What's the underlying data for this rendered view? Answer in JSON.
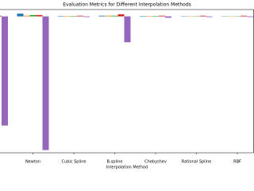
{
  "chart_data": {
    "type": "bar",
    "title": "Evaluation Metrics for Different Interpolation Methods",
    "x_label": "Interpolation Method",
    "categories": [
      null,
      "Newton",
      "Cubic Spline",
      "B-spline",
      "Chebyshev",
      "Rational Spline",
      "RBF"
    ],
    "series": [
      {
        "color": "#1f77b4",
        "values": [
          0.5,
          2,
          0.3,
          0.5,
          0.3,
          0.2,
          0.2
        ]
      },
      {
        "color": "#ff7f0e",
        "values": [
          0.3,
          0.5,
          0.3,
          0.5,
          0.3,
          0.2,
          0.2
        ]
      },
      {
        "color": "#2ca02c",
        "values": [
          0.3,
          1,
          0.3,
          0.5,
          0.3,
          0.2,
          0.2
        ]
      },
      {
        "color": "#d62728",
        "values": [
          0.5,
          1,
          0.5,
          1.5,
          0.5,
          0.5,
          0.5
        ]
      },
      {
        "color": "#9467bd",
        "values": [
          -80,
          -98,
          -0.5,
          -19,
          -1,
          -0.5,
          -0.5
        ]
      }
    ],
    "ylim": [
      -100,
      5
    ]
  }
}
